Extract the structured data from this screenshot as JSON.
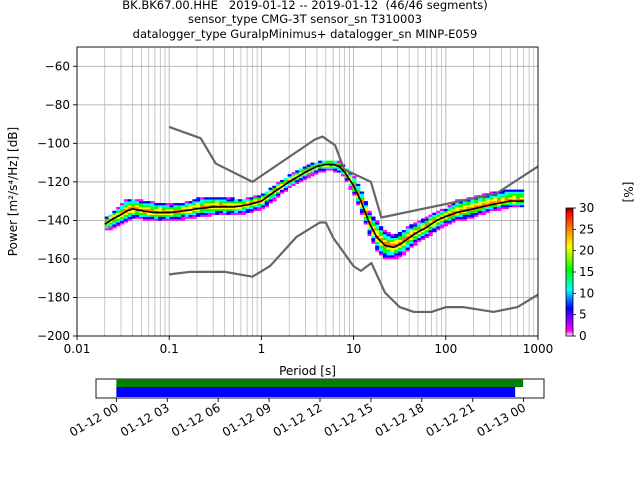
{
  "header": {
    "title_line1": "BK.BK67.00.HHE   2019-01-12 -- 2019-01-12  (46/46 segments)",
    "title_line2": "sensor_type CMG-3T sensor_sn T310003",
    "title_line3": "datalogger_type GuralpMinimus+ datalogger_sn MINP-E059"
  },
  "chart_data": {
    "type": "heatmap",
    "title": "BK.BK67.00.HHE   2019-01-12 -- 2019-01-12  (46/46 segments)",
    "xlabel": "Period [s]",
    "ylabel": "Power [m²/s⁴/Hz] [dB]",
    "x_scale": "log",
    "xlim": [
      0.01,
      1000
    ],
    "ylim": [
      -200,
      -50
    ],
    "x_ticks": [
      "0.01",
      "0.1",
      "1",
      "10",
      "100",
      "1000"
    ],
    "y_ticks": [
      "−60",
      "−80",
      "−100",
      "−120",
      "−140",
      "−160",
      "−180",
      "−200"
    ],
    "grid": true,
    "colorbar": {
      "label": "[%]",
      "range": [
        0,
        30
      ],
      "ticks": [
        "0",
        "5",
        "10",
        "15",
        "20",
        "25",
        "30"
      ],
      "colormap": [
        "#ffffff",
        "#ff00ff",
        "#0000ff",
        "#00ffff",
        "#00ff00",
        "#ffff00",
        "#ff8000",
        "#ff0000",
        "#800000"
      ]
    },
    "noise_model_high": {
      "x": [
        0.1,
        0.22,
        0.32,
        0.8,
        3.8,
        4.6,
        6.3,
        7.9,
        15.4,
        20,
        354.8,
        1000
      ],
      "y": [
        -91.5,
        -97.4,
        -110.5,
        -120,
        -98,
        -96.5,
        -101,
        -113.5,
        -120,
        -138.5,
        -126,
        -112
      ]
    },
    "noise_model_low": {
      "x": [
        0.1,
        0.17,
        0.4,
        0.8,
        1.24,
        2.4,
        4.3,
        5,
        6,
        10,
        12,
        15.6,
        21.9,
        31.6,
        45,
        70,
        101,
        154,
        328,
        600,
        1000
      ],
      "y": [
        -168,
        -166.7,
        -166.7,
        -169.2,
        -163.7,
        -148.6,
        -141.1,
        -141.1,
        -149,
        -163.8,
        -166.2,
        -162.1,
        -177.5,
        -185,
        -187.5,
        -187.5,
        -185,
        -185,
        -187.5,
        -185,
        -178.5
      ]
    },
    "mode_curve": {
      "x": [
        0.02,
        0.025,
        0.03,
        0.035,
        0.04,
        0.05,
        0.07,
        0.1,
        0.15,
        0.2,
        0.3,
        0.5,
        0.7,
        1,
        1.3,
        2,
        3,
        4,
        5,
        6,
        7,
        8,
        10,
        12,
        15,
        18,
        22,
        27,
        33,
        40,
        50,
        60,
        80,
        100,
        130,
        200,
        300,
        500,
        700
      ],
      "y": [
        -142,
        -139,
        -137,
        -135,
        -134,
        -135,
        -136,
        -136,
        -135,
        -134,
        -133,
        -133,
        -132,
        -130,
        -126,
        -120,
        -115,
        -112,
        -111,
        -111,
        -112,
        -115,
        -122,
        -130,
        -142,
        -149,
        -153,
        -154,
        -152,
        -149,
        -146,
        -144,
        -140,
        -138,
        -136,
        -134,
        -132,
        -130,
        -130
      ]
    },
    "spread_min": [
      -145,
      -144,
      -142,
      -140,
      -139,
      -139,
      -140,
      -140,
      -139,
      -138,
      -137,
      -137,
      -136,
      -134,
      -130,
      -123,
      -118,
      -115,
      -114,
      -114,
      -115,
      -118,
      -126,
      -135,
      -148,
      -156,
      -160,
      -160,
      -158,
      -155,
      -151,
      -149,
      -145,
      -142,
      -140,
      -138,
      -135,
      -133,
      -133
    ],
    "spread_max": [
      -139,
      -136,
      -132,
      -129,
      -129,
      -130,
      -131,
      -132,
      -131,
      -129,
      -128,
      -129,
      -129,
      -127,
      -123,
      -117,
      -112,
      -110,
      -109,
      -109,
      -110,
      -112,
      -117,
      -124,
      -136,
      -141,
      -146,
      -148,
      -146,
      -143,
      -141,
      -139,
      -136,
      -134,
      -130,
      -128,
      -126,
      -124,
      -124
    ],
    "timeline": {
      "tick_labels": [
        "01-12 00",
        "01-12 03",
        "01-12 06",
        "01-12 09",
        "01-12 12",
        "01-12 15",
        "01-12 18",
        "01-12 21",
        "01-13 00"
      ],
      "xlim_hours": [
        -1.2,
        25.2
      ],
      "data_coverage_hours": [
        0,
        23.97
      ],
      "psd_coverage_hours": [
        0,
        23.5
      ],
      "data_color": "#008000",
      "psd_color": "#0000ff"
    },
    "colors": {
      "noise_models": "#666666",
      "mode_curve": "#000000",
      "grid": "#b0b0b0"
    }
  }
}
